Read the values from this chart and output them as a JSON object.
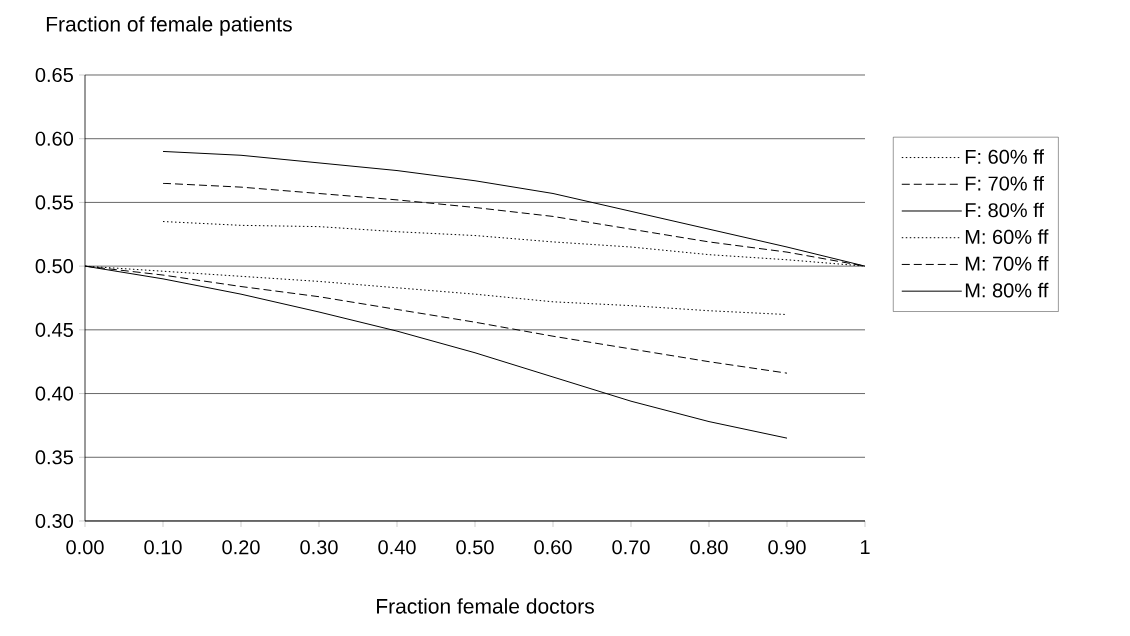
{
  "chart_data": {
    "type": "line",
    "xlabel": "Fraction female doctors",
    "ylabel": "Fraction of female patients",
    "xlim": [
      0,
      1
    ],
    "ylim": [
      0.3,
      0.65
    ],
    "xticks": [
      {
        "value": 0,
        "label": "0.00"
      },
      {
        "value": 0.1,
        "label": "0.10"
      },
      {
        "value": 0.2,
        "label": "0.20"
      },
      {
        "value": 0.3,
        "label": "0.30"
      },
      {
        "value": 0.4,
        "label": "0.40"
      },
      {
        "value": 0.5,
        "label": "0.50"
      },
      {
        "value": 0.6,
        "label": "0.60"
      },
      {
        "value": 0.7,
        "label": "0.70"
      },
      {
        "value": 0.8,
        "label": "0.80"
      },
      {
        "value": 0.9,
        "label": "0.90"
      },
      1
    ],
    "yticks": [
      {
        "value": 0.3,
        "label": "0.30"
      },
      {
        "value": 0.35,
        "label": "0.35"
      },
      {
        "value": 0.4,
        "label": "0.40"
      },
      {
        "value": 0.45,
        "label": "0.45"
      },
      {
        "value": 0.5,
        "label": "0.50"
      },
      {
        "value": 0.55,
        "label": "0.55"
      },
      {
        "value": 0.6,
        "label": "0.60"
      },
      {
        "value": 0.65,
        "label": "0.65"
      }
    ],
    "grid": "y",
    "legend": "right",
    "series": [
      {
        "name": "F: 60% ff",
        "color": "#000000",
        "line_style": "dotted",
        "x": [
          0.1,
          0.2,
          0.3,
          0.4,
          0.5,
          0.6,
          0.7,
          0.8,
          0.9,
          1
        ],
        "values": [
          0.535,
          0.532,
          0.531,
          0.527,
          0.524,
          0.519,
          0.515,
          0.509,
          0.505,
          0.5
        ]
      },
      {
        "name": "F: 70% ff",
        "color": "#000000",
        "line_style": "dashed",
        "x": [
          0.1,
          0.2,
          0.3,
          0.4,
          0.5,
          0.6,
          0.7,
          0.8,
          0.9,
          1
        ],
        "values": [
          0.565,
          0.562,
          0.557,
          0.552,
          0.546,
          0.539,
          0.529,
          0.519,
          0.511,
          0.5
        ]
      },
      {
        "name": "F: 80% ff",
        "color": "#000000",
        "line_style": "solid",
        "x": [
          0.1,
          0.2,
          0.3,
          0.4,
          0.5,
          0.6,
          0.7,
          0.8,
          0.9,
          1
        ],
        "values": [
          0.59,
          0.587,
          0.581,
          0.575,
          0.567,
          0.557,
          0.543,
          0.529,
          0.515,
          0.5
        ]
      },
      {
        "name": "M: 60% ff",
        "color": "#000000",
        "line_style": "dotted",
        "x": [
          0,
          0.1,
          0.2,
          0.3,
          0.4,
          0.5,
          0.6,
          0.7,
          0.8,
          0.9
        ],
        "values": [
          0.5,
          0.496,
          0.492,
          0.488,
          0.483,
          0.478,
          0.472,
          0.469,
          0.465,
          0.462
        ]
      },
      {
        "name": "M: 70% ff",
        "color": "#000000",
        "line_style": "dashed",
        "x": [
          0,
          0.1,
          0.2,
          0.3,
          0.4,
          0.5,
          0.6,
          0.7,
          0.8,
          0.9
        ],
        "values": [
          0.5,
          0.493,
          0.484,
          0.476,
          0.466,
          0.456,
          0.445,
          0.435,
          0.425,
          0.416
        ]
      },
      {
        "name": "M: 80% ff",
        "color": "#000000",
        "line_style": "solid",
        "x": [
          0,
          0.1,
          0.2,
          0.3,
          0.4,
          0.5,
          0.6,
          0.7,
          0.8,
          0.9
        ],
        "values": [
          0.5,
          0.49,
          0.478,
          0.464,
          0.449,
          0.432,
          0.413,
          0.394,
          0.378,
          0.365
        ]
      }
    ]
  }
}
